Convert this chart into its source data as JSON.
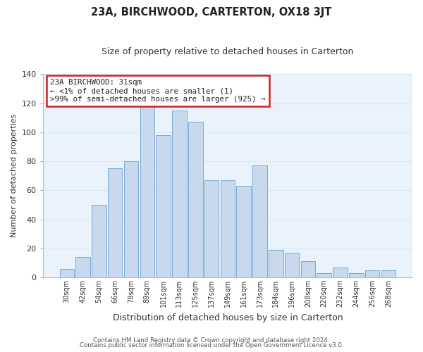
{
  "title": "23A, BIRCHWOOD, CARTERTON, OX18 3JT",
  "subtitle": "Size of property relative to detached houses in Carterton",
  "xlabel": "Distribution of detached houses by size in Carterton",
  "ylabel": "Number of detached properties",
  "footer_lines": [
    "Contains HM Land Registry data © Crown copyright and database right 2024.",
    "Contains public sector information licensed under the Open Government Licence v3.0."
  ],
  "bar_labels": [
    "30sqm",
    "42sqm",
    "54sqm",
    "66sqm",
    "78sqm",
    "89sqm",
    "101sqm",
    "113sqm",
    "125sqm",
    "137sqm",
    "149sqm",
    "161sqm",
    "173sqm",
    "184sqm",
    "196sqm",
    "208sqm",
    "220sqm",
    "232sqm",
    "244sqm",
    "256sqm",
    "268sqm"
  ],
  "bar_values": [
    6,
    14,
    50,
    75,
    80,
    118,
    98,
    115,
    107,
    67,
    67,
    63,
    77,
    19,
    17,
    11,
    3,
    7,
    3,
    5,
    5
  ],
  "bar_color": "#c8d9ee",
  "bar_edge_color": "#7aaad4",
  "ylim": [
    0,
    140
  ],
  "yticks": [
    0,
    20,
    40,
    60,
    80,
    100,
    120,
    140
  ],
  "annotation_title": "23A BIRCHWOOD: 31sqm",
  "annotation_line1": "← <1% of detached houses are smaller (1)",
  "annotation_line2": ">99% of semi-detached houses are larger (925) →",
  "annotation_box_facecolor": "#ffffff",
  "annotation_border_color": "#cc2222",
  "grid_color": "#d8e8f4",
  "figure_bg": "#ffffff",
  "plot_bg": "#eaf3fc",
  "title_fontsize": 10.5,
  "subtitle_fontsize": 9,
  "ylabel_fontsize": 8,
  "xlabel_fontsize": 9
}
